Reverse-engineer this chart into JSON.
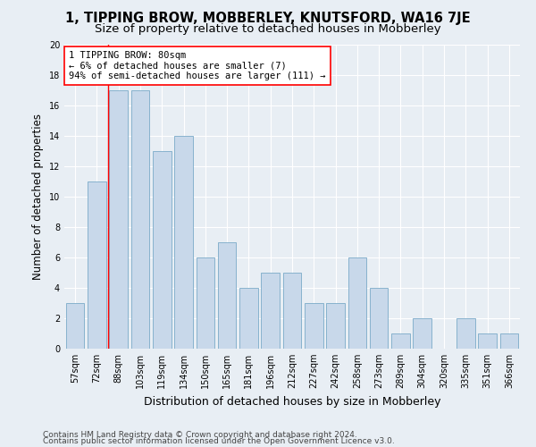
{
  "title": "1, TIPPING BROW, MOBBERLEY, KNUTSFORD, WA16 7JE",
  "subtitle": "Size of property relative to detached houses in Mobberley",
  "xlabel": "Distribution of detached houses by size in Mobberley",
  "ylabel": "Number of detached properties",
  "categories": [
    "57sqm",
    "72sqm",
    "88sqm",
    "103sqm",
    "119sqm",
    "134sqm",
    "150sqm",
    "165sqm",
    "181sqm",
    "196sqm",
    "212sqm",
    "227sqm",
    "242sqm",
    "258sqm",
    "273sqm",
    "289sqm",
    "304sqm",
    "320sqm",
    "335sqm",
    "351sqm",
    "366sqm"
  ],
  "values": [
    3,
    11,
    17,
    17,
    13,
    14,
    6,
    7,
    4,
    5,
    5,
    3,
    3,
    6,
    4,
    1,
    2,
    0,
    2,
    1,
    1
  ],
  "bar_color": "#c8d8ea",
  "bar_edge_color": "#7aaac8",
  "vline_color": "red",
  "vline_x": 1.5,
  "annotation_text": "1 TIPPING BROW: 80sqm\n← 6% of detached houses are smaller (7)\n94% of semi-detached houses are larger (111) →",
  "annotation_box_facecolor": "white",
  "annotation_box_edgecolor": "red",
  "footer_line1": "Contains HM Land Registry data © Crown copyright and database right 2024.",
  "footer_line2": "Contains public sector information licensed under the Open Government Licence v3.0.",
  "ylim": [
    0,
    20
  ],
  "yticks": [
    0,
    2,
    4,
    6,
    8,
    10,
    12,
    14,
    16,
    18,
    20
  ],
  "bg_color": "#e8eef4",
  "plot_bg_color": "#e8eef4",
  "grid_color": "white",
  "title_fontsize": 10.5,
  "subtitle_fontsize": 9.5,
  "xlabel_fontsize": 9,
  "ylabel_fontsize": 8.5,
  "tick_fontsize": 7,
  "footer_fontsize": 6.5,
  "annotation_fontsize": 7.5
}
